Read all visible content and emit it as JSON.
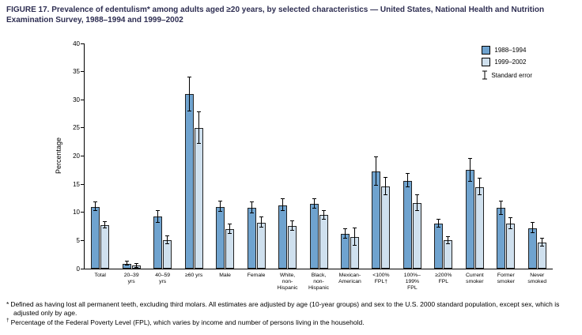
{
  "title": "FIGURE 17. Prevalence of edentulism* among adults aged ≥20 years, by selected characteristics — United States, National Health and Nutrition Examination Survey, 1988–1994 and 1999–2002",
  "chart_data": {
    "type": "bar",
    "title": "Prevalence of edentulism among adults aged ≥20 years",
    "xlabel": "",
    "ylabel": "Percentage",
    "ylim": [
      0,
      40
    ],
    "ytick_step": 5,
    "grid": false,
    "legend_position": "top-right",
    "legend_se_label": "Standard error",
    "categories": [
      "Total",
      "20–39\nyrs",
      "40–59\nyrs",
      "≥60 yrs",
      "Male",
      "Female",
      "White,\nnon-\nHispanic",
      "Black,\nnon-\nHispanic",
      "Mexican-\nAmerican",
      "<100%\nFPL†",
      "100%–\n199%\nFPL",
      "≥200%\nFPL",
      "Current\nsmoker",
      "Former\nsmoker",
      "Never\nsmoked"
    ],
    "series": [
      {
        "name": "1988–1994",
        "color": "#6fa3cf",
        "values": [
          11.0,
          0.9,
          9.2,
          31.0,
          11.0,
          10.8,
          11.3,
          11.5,
          6.2,
          17.3,
          15.6,
          8.0,
          17.5,
          10.8,
          7.2
        ],
        "se": [
          0.8,
          0.3,
          1.0,
          3.0,
          0.9,
          1.0,
          1.0,
          0.9,
          0.8,
          2.5,
          1.2,
          0.7,
          2.0,
          1.2,
          0.9
        ]
      },
      {
        "name": "1999–2002",
        "color": "#cfe0ee",
        "values": [
          7.7,
          0.5,
          5.0,
          25.0,
          7.0,
          8.2,
          7.6,
          9.5,
          5.6,
          14.6,
          11.6,
          5.0,
          14.5,
          8.0,
          4.6
        ],
        "se": [
          0.6,
          0.3,
          0.7,
          2.8,
          0.8,
          0.9,
          0.8,
          0.8,
          1.5,
          1.5,
          1.4,
          0.6,
          1.5,
          1.0,
          0.7
        ]
      }
    ]
  },
  "footnotes": [
    {
      "marker": "*",
      "text": "Defined as having lost all permanent teeth, excluding third molars. All estimates are adjusted by age (10-year groups) and sex to the U.S. 2000 standard population, except sex, which is adjusted only by age."
    },
    {
      "marker": "†",
      "text": "Percentage of the Federal Poverty Level (FPL), which varies by income and number of persons living in the household."
    }
  ]
}
